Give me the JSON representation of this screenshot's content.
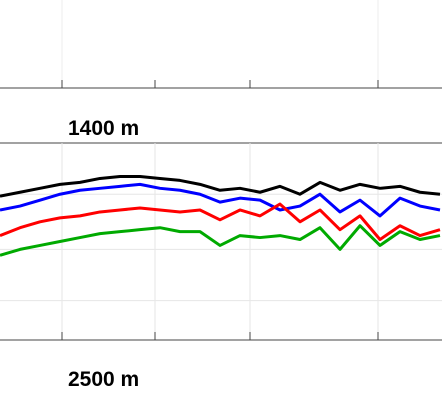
{
  "panel_labels": [
    "1400 m",
    "2500 m"
  ],
  "chart_data": {
    "type": "line",
    "x": [
      0,
      20,
      40,
      60,
      80,
      100,
      120,
      140,
      160,
      180,
      200,
      220,
      240,
      260,
      280,
      300,
      320,
      340,
      360,
      380,
      400,
      420,
      440
    ],
    "xlim": [
      0,
      442
    ],
    "ylim": [
      0,
      100
    ],
    "xticks": [
      62,
      155,
      250,
      378
    ],
    "yticks": [
      20,
      46,
      74
    ],
    "grid": true,
    "series": [
      {
        "color": "#000000",
        "values": [
          73,
          75,
          77,
          79,
          80,
          82,
          83,
          83,
          82,
          81,
          79,
          76,
          77,
          75,
          78,
          74,
          80,
          76,
          79,
          77,
          78,
          75,
          74
        ]
      },
      {
        "color": "#0000ff",
        "values": [
          66,
          68,
          71,
          74,
          76,
          77,
          78,
          79,
          77,
          76,
          74,
          70,
          72,
          71,
          66,
          68,
          74,
          65,
          71,
          63,
          72,
          68,
          66
        ]
      },
      {
        "color": "#ff0000",
        "values": [
          53,
          57,
          60,
          62,
          63,
          65,
          66,
          67,
          66,
          65,
          66,
          61,
          66,
          63,
          69,
          60,
          66,
          56,
          63,
          51,
          58,
          53,
          56
        ]
      },
      {
        "color": "#00aa00",
        "values": [
          43,
          46,
          48,
          50,
          52,
          54,
          55,
          56,
          57,
          55,
          55,
          48,
          53,
          52,
          53,
          51,
          57,
          46,
          58,
          48,
          55,
          51,
          53
        ]
      }
    ]
  }
}
